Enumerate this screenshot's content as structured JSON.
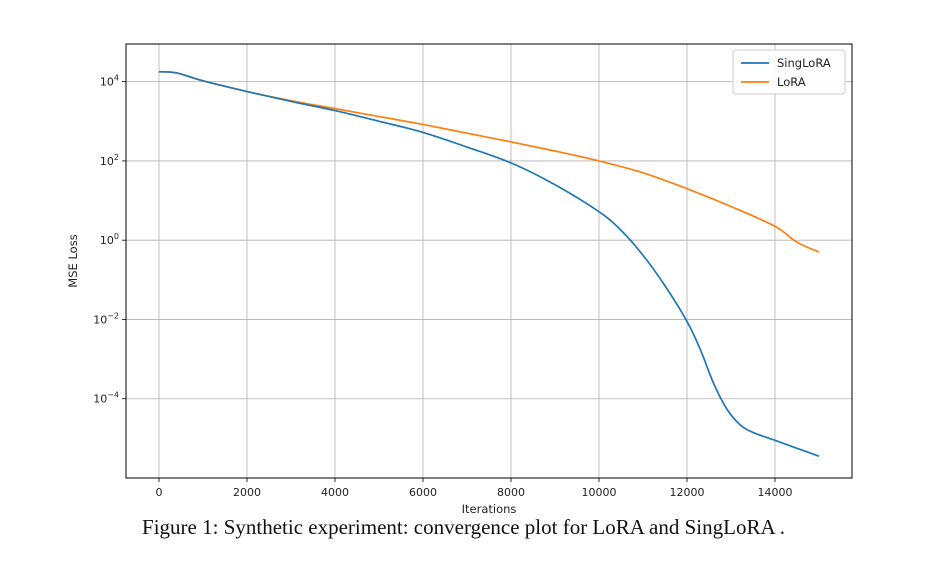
{
  "chart_data": {
    "type": "line",
    "xlabel": "Iterations",
    "ylabel": "MSE Loss",
    "xlim": [
      -750,
      15750
    ],
    "ylim_log10": [
      -6,
      4.95
    ],
    "yscale": "log",
    "grid": true,
    "legend_position": "top-right",
    "x_ticks": [
      0,
      2000,
      4000,
      6000,
      8000,
      10000,
      12000,
      14000
    ],
    "y_tick_exponents": [
      4,
      2,
      0,
      -2,
      -4
    ],
    "series": [
      {
        "name": "SingLoRA",
        "color": "#1f77b4",
        "x": [
          0,
          400,
          1000,
          2000,
          3000,
          4000,
          5000,
          6000,
          7000,
          8000,
          9000,
          10000,
          10500,
          11000,
          11500,
          12000,
          12300,
          12600,
          12900,
          13200,
          13500,
          14000,
          14500,
          15000
        ],
        "log10_y": [
          4.25,
          4.22,
          4.02,
          3.75,
          3.5,
          3.27,
          3.0,
          2.72,
          2.35,
          1.95,
          1.4,
          0.72,
          0.25,
          -0.38,
          -1.15,
          -2.05,
          -2.75,
          -3.6,
          -4.25,
          -4.65,
          -4.85,
          -5.05,
          -5.25,
          -5.45
        ]
      },
      {
        "name": "LoRA",
        "color": "#ff7f0e",
        "x": [
          0,
          400,
          1000,
          2000,
          3000,
          4000,
          5000,
          6000,
          7000,
          8000,
          9000,
          10000,
          11000,
          12000,
          13000,
          14000,
          14500,
          15000
        ],
        "log10_y": [
          4.25,
          4.22,
          4.02,
          3.75,
          3.52,
          3.32,
          3.12,
          2.92,
          2.7,
          2.48,
          2.25,
          2.0,
          1.7,
          1.3,
          0.85,
          0.35,
          -0.05,
          -0.3
        ]
      }
    ]
  },
  "caption": "Figure 1: Synthetic experiment: convergence plot for LoRA and SingLoRA ."
}
